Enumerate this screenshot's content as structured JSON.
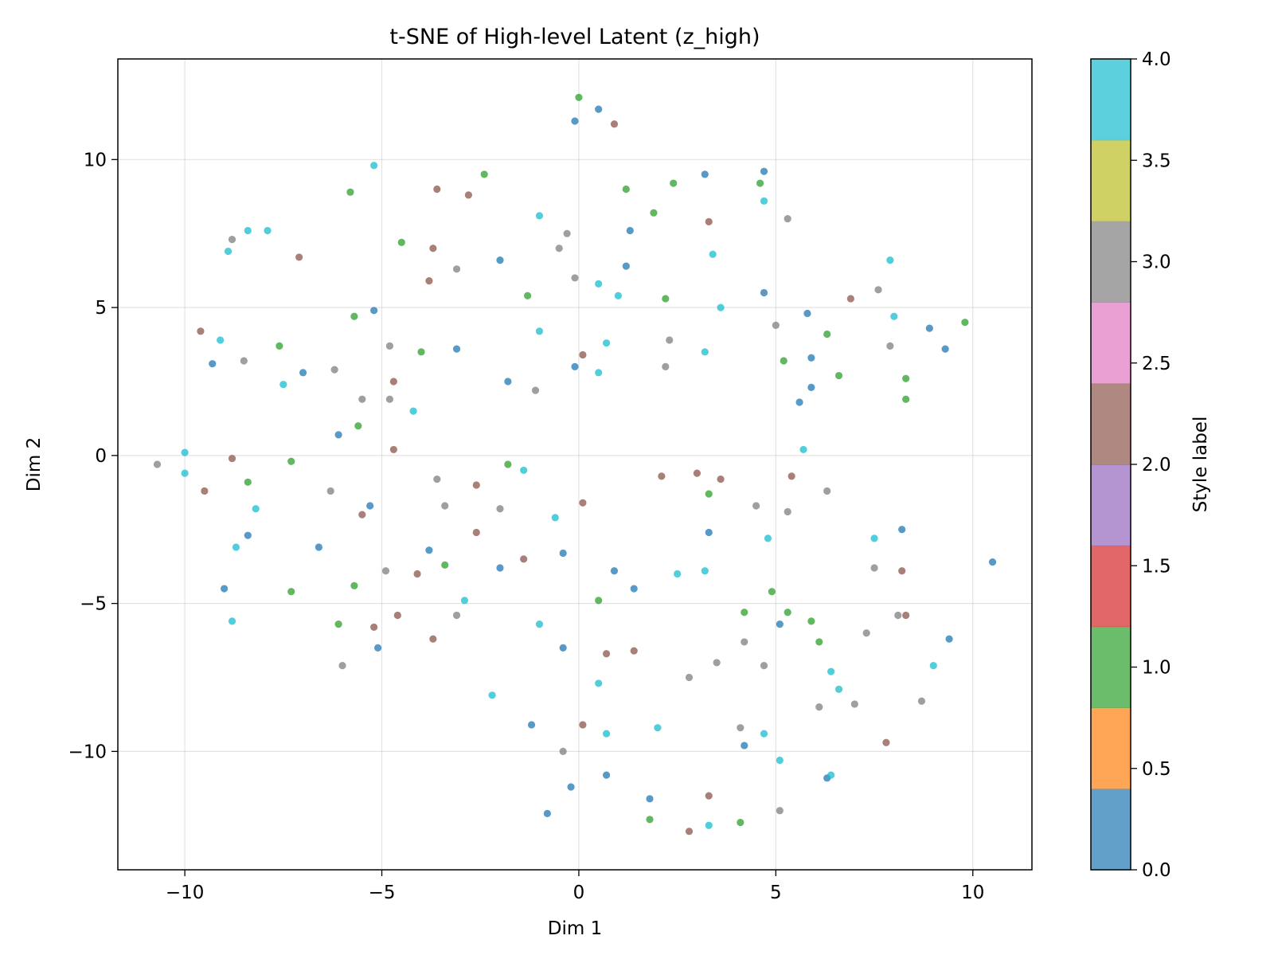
{
  "chart_data": {
    "type": "scatter",
    "title": "t-SNE of High-level Latent (z_high)",
    "xlabel": "Dim 1",
    "ylabel": "Dim 2",
    "xlim": [
      -11.7,
      11.5
    ],
    "ylim": [
      -14.0,
      13.4
    ],
    "xticks": [
      -10,
      -5,
      0,
      5,
      10
    ],
    "yticks": [
      -10,
      -5,
      0,
      5,
      10
    ],
    "xtick_labels": [
      "−10",
      "−5",
      "0",
      "5",
      "10"
    ],
    "ytick_labels": [
      "−10",
      "−5",
      "0",
      "5",
      "10"
    ],
    "grid": true,
    "colormap": "tab10 (5 classes)",
    "class_colors": {
      "0": "#1f77b4",
      "1": "#2ca02c",
      "2": "#8c564b",
      "3": "#7f7f7f",
      "4": "#17becf"
    },
    "colorbar": {
      "label": "Style label",
      "range": [
        0.0,
        4.0
      ],
      "ticks": [
        0.0,
        0.5,
        1.0,
        1.5,
        2.0,
        2.5,
        3.0,
        3.5,
        4.0
      ],
      "tick_labels": [
        "0.0",
        "0.5",
        "1.0",
        "1.5",
        "2.0",
        "2.5",
        "3.0",
        "3.5",
        "4.0"
      ],
      "segments": [
        "#1f77b4",
        "#ff7f0e",
        "#2ca02c",
        "#d62728",
        "#9467bd",
        "#8c564b",
        "#e377c2",
        "#7f7f7f",
        "#bcbd22",
        "#17becf"
      ]
    },
    "points": [
      {
        "x": 0.0,
        "y": 12.1,
        "c": 1
      },
      {
        "x": 0.5,
        "y": 11.7,
        "c": 0
      },
      {
        "x": -0.1,
        "y": 11.3,
        "c": 0
      },
      {
        "x": 0.9,
        "y": 11.2,
        "c": 2
      },
      {
        "x": -5.2,
        "y": 9.8,
        "c": 4
      },
      {
        "x": -2.4,
        "y": 9.5,
        "c": 1
      },
      {
        "x": 3.2,
        "y": 9.5,
        "c": 0
      },
      {
        "x": 4.7,
        "y": 9.6,
        "c": 0
      },
      {
        "x": 4.6,
        "y": 9.2,
        "c": 1
      },
      {
        "x": 2.4,
        "y": 9.2,
        "c": 1
      },
      {
        "x": 1.2,
        "y": 9.0,
        "c": 1
      },
      {
        "x": -3.6,
        "y": 9.0,
        "c": 2
      },
      {
        "x": -2.8,
        "y": 8.8,
        "c": 2
      },
      {
        "x": -5.8,
        "y": 8.9,
        "c": 1
      },
      {
        "x": 4.7,
        "y": 8.6,
        "c": 4
      },
      {
        "x": 1.9,
        "y": 8.2,
        "c": 1
      },
      {
        "x": -1.0,
        "y": 8.1,
        "c": 4
      },
      {
        "x": 5.3,
        "y": 8.0,
        "c": 3
      },
      {
        "x": 3.3,
        "y": 7.9,
        "c": 2
      },
      {
        "x": -8.4,
        "y": 7.6,
        "c": 4
      },
      {
        "x": -7.9,
        "y": 7.6,
        "c": 4
      },
      {
        "x": 1.3,
        "y": 7.6,
        "c": 0
      },
      {
        "x": -0.3,
        "y": 7.5,
        "c": 3
      },
      {
        "x": -8.8,
        "y": 7.3,
        "c": 3
      },
      {
        "x": -4.5,
        "y": 7.2,
        "c": 1
      },
      {
        "x": -0.5,
        "y": 7.0,
        "c": 3
      },
      {
        "x": -3.7,
        "y": 7.0,
        "c": 2
      },
      {
        "x": -8.9,
        "y": 6.9,
        "c": 4
      },
      {
        "x": 3.4,
        "y": 6.8,
        "c": 4
      },
      {
        "x": -7.1,
        "y": 6.7,
        "c": 2
      },
      {
        "x": -2.0,
        "y": 6.6,
        "c": 0
      },
      {
        "x": 7.9,
        "y": 6.6,
        "c": 4
      },
      {
        "x": 1.2,
        "y": 6.4,
        "c": 0
      },
      {
        "x": -3.1,
        "y": 6.3,
        "c": 3
      },
      {
        "x": -0.1,
        "y": 6.0,
        "c": 3
      },
      {
        "x": -3.8,
        "y": 5.9,
        "c": 2
      },
      {
        "x": 0.5,
        "y": 5.8,
        "c": 4
      },
      {
        "x": 7.6,
        "y": 5.6,
        "c": 3
      },
      {
        "x": 4.7,
        "y": 5.5,
        "c": 0
      },
      {
        "x": 1.0,
        "y": 5.4,
        "c": 4
      },
      {
        "x": -1.3,
        "y": 5.4,
        "c": 1
      },
      {
        "x": 2.2,
        "y": 5.3,
        "c": 1
      },
      {
        "x": 6.9,
        "y": 5.3,
        "c": 2
      },
      {
        "x": 3.6,
        "y": 5.0,
        "c": 4
      },
      {
        "x": -5.2,
        "y": 4.9,
        "c": 0
      },
      {
        "x": 5.8,
        "y": 4.8,
        "c": 0
      },
      {
        "x": -5.7,
        "y": 4.7,
        "c": 1
      },
      {
        "x": 8.0,
        "y": 4.7,
        "c": 4
      },
      {
        "x": 9.8,
        "y": 4.5,
        "c": 1
      },
      {
        "x": 5.0,
        "y": 4.4,
        "c": 3
      },
      {
        "x": 8.9,
        "y": 4.3,
        "c": 0
      },
      {
        "x": -1.0,
        "y": 4.2,
        "c": 4
      },
      {
        "x": -9.6,
        "y": 4.2,
        "c": 2
      },
      {
        "x": 6.3,
        "y": 4.1,
        "c": 1
      },
      {
        "x": -9.1,
        "y": 3.9,
        "c": 4
      },
      {
        "x": 2.3,
        "y": 3.9,
        "c": 3
      },
      {
        "x": 0.7,
        "y": 3.8,
        "c": 4
      },
      {
        "x": -4.8,
        "y": 3.7,
        "c": 3
      },
      {
        "x": -7.6,
        "y": 3.7,
        "c": 1
      },
      {
        "x": 7.9,
        "y": 3.7,
        "c": 3
      },
      {
        "x": 9.3,
        "y": 3.6,
        "c": 0
      },
      {
        "x": -3.1,
        "y": 3.6,
        "c": 0
      },
      {
        "x": -4.0,
        "y": 3.5,
        "c": 1
      },
      {
        "x": 3.2,
        "y": 3.5,
        "c": 4
      },
      {
        "x": 0.1,
        "y": 3.4,
        "c": 2
      },
      {
        "x": 5.9,
        "y": 3.3,
        "c": 0
      },
      {
        "x": -8.5,
        "y": 3.2,
        "c": 3
      },
      {
        "x": -9.3,
        "y": 3.1,
        "c": 0
      },
      {
        "x": 5.2,
        "y": 3.2,
        "c": 1
      },
      {
        "x": -0.1,
        "y": 3.0,
        "c": 0
      },
      {
        "x": 2.2,
        "y": 3.0,
        "c": 3
      },
      {
        "x": -6.2,
        "y": 2.9,
        "c": 3
      },
      {
        "x": -7.0,
        "y": 2.8,
        "c": 0
      },
      {
        "x": 0.5,
        "y": 2.8,
        "c": 4
      },
      {
        "x": 6.6,
        "y": 2.7,
        "c": 1
      },
      {
        "x": 8.3,
        "y": 2.6,
        "c": 1
      },
      {
        "x": -1.8,
        "y": 2.5,
        "c": 0
      },
      {
        "x": -4.7,
        "y": 2.5,
        "c": 2
      },
      {
        "x": -7.5,
        "y": 2.4,
        "c": 4
      },
      {
        "x": 5.9,
        "y": 2.3,
        "c": 0
      },
      {
        "x": -1.1,
        "y": 2.2,
        "c": 3
      },
      {
        "x": -5.5,
        "y": 1.9,
        "c": 3
      },
      {
        "x": -4.8,
        "y": 1.9,
        "c": 3
      },
      {
        "x": 8.3,
        "y": 1.9,
        "c": 1
      },
      {
        "x": 5.6,
        "y": 1.8,
        "c": 0
      },
      {
        "x": -4.2,
        "y": 1.5,
        "c": 4
      },
      {
        "x": -5.6,
        "y": 1.0,
        "c": 1
      },
      {
        "x": -6.1,
        "y": 0.7,
        "c": 0
      },
      {
        "x": -4.7,
        "y": 0.2,
        "c": 2
      },
      {
        "x": 5.7,
        "y": 0.2,
        "c": 4
      },
      {
        "x": -10.0,
        "y": 0.1,
        "c": 4
      },
      {
        "x": -8.8,
        "y": -0.1,
        "c": 2
      },
      {
        "x": -7.3,
        "y": -0.2,
        "c": 1
      },
      {
        "x": -10.7,
        "y": -0.3,
        "c": 3
      },
      {
        "x": -1.8,
        "y": -0.3,
        "c": 1
      },
      {
        "x": -1.4,
        "y": -0.5,
        "c": 4
      },
      {
        "x": 3.0,
        "y": -0.6,
        "c": 2
      },
      {
        "x": -10.0,
        "y": -0.6,
        "c": 4
      },
      {
        "x": 2.1,
        "y": -0.7,
        "c": 2
      },
      {
        "x": 5.4,
        "y": -0.7,
        "c": 2
      },
      {
        "x": 3.6,
        "y": -0.8,
        "c": 2
      },
      {
        "x": -3.6,
        "y": -0.8,
        "c": 3
      },
      {
        "x": -8.4,
        "y": -0.9,
        "c": 1
      },
      {
        "x": -2.6,
        "y": -1.0,
        "c": 2
      },
      {
        "x": -9.5,
        "y": -1.2,
        "c": 2
      },
      {
        "x": -6.3,
        "y": -1.2,
        "c": 3
      },
      {
        "x": 6.3,
        "y": -1.2,
        "c": 3
      },
      {
        "x": 3.3,
        "y": -1.3,
        "c": 1
      },
      {
        "x": 0.1,
        "y": -1.6,
        "c": 2
      },
      {
        "x": -5.3,
        "y": -1.7,
        "c": 0
      },
      {
        "x": -3.4,
        "y": -1.7,
        "c": 3
      },
      {
        "x": 4.5,
        "y": -1.7,
        "c": 3
      },
      {
        "x": -8.2,
        "y": -1.8,
        "c": 4
      },
      {
        "x": -2.0,
        "y": -1.8,
        "c": 3
      },
      {
        "x": 5.3,
        "y": -1.9,
        "c": 3
      },
      {
        "x": -5.5,
        "y": -2.0,
        "c": 2
      },
      {
        "x": -0.6,
        "y": -2.1,
        "c": 4
      },
      {
        "x": 8.2,
        "y": -2.5,
        "c": 0
      },
      {
        "x": 3.3,
        "y": -2.6,
        "c": 0
      },
      {
        "x": -2.6,
        "y": -2.6,
        "c": 2
      },
      {
        "x": -8.4,
        "y": -2.7,
        "c": 0
      },
      {
        "x": 4.8,
        "y": -2.8,
        "c": 4
      },
      {
        "x": 7.5,
        "y": -2.8,
        "c": 4
      },
      {
        "x": -8.7,
        "y": -3.1,
        "c": 4
      },
      {
        "x": -6.6,
        "y": -3.1,
        "c": 0
      },
      {
        "x": -3.8,
        "y": -3.2,
        "c": 0
      },
      {
        "x": -0.4,
        "y": -3.3,
        "c": 0
      },
      {
        "x": -1.4,
        "y": -3.5,
        "c": 2
      },
      {
        "x": 10.5,
        "y": -3.6,
        "c": 0
      },
      {
        "x": 7.5,
        "y": -3.8,
        "c": 3
      },
      {
        "x": -2.0,
        "y": -3.8,
        "c": 0
      },
      {
        "x": -4.9,
        "y": -3.9,
        "c": 3
      },
      {
        "x": 3.2,
        "y": -3.9,
        "c": 4
      },
      {
        "x": 0.9,
        "y": -3.9,
        "c": 0
      },
      {
        "x": 8.2,
        "y": -3.9,
        "c": 2
      },
      {
        "x": 2.5,
        "y": -4.0,
        "c": 4
      },
      {
        "x": -4.1,
        "y": -4.0,
        "c": 2
      },
      {
        "x": -3.4,
        "y": -3.7,
        "c": 1
      },
      {
        "x": -5.7,
        "y": -4.4,
        "c": 1
      },
      {
        "x": -9.0,
        "y": -4.5,
        "c": 0
      },
      {
        "x": 1.4,
        "y": -4.5,
        "c": 0
      },
      {
        "x": -7.3,
        "y": -4.6,
        "c": 1
      },
      {
        "x": 4.9,
        "y": -4.6,
        "c": 1
      },
      {
        "x": 0.5,
        "y": -4.9,
        "c": 1
      },
      {
        "x": -2.9,
        "y": -4.9,
        "c": 4
      },
      {
        "x": 4.2,
        "y": -5.3,
        "c": 1
      },
      {
        "x": 5.3,
        "y": -5.3,
        "c": 1
      },
      {
        "x": -3.1,
        "y": -5.4,
        "c": 3
      },
      {
        "x": 8.3,
        "y": -5.4,
        "c": 2
      },
      {
        "x": 8.1,
        "y": -5.4,
        "c": 3
      },
      {
        "x": -4.6,
        "y": -5.4,
        "c": 2
      },
      {
        "x": -8.8,
        "y": -5.6,
        "c": 4
      },
      {
        "x": 5.9,
        "y": -5.6,
        "c": 1
      },
      {
        "x": -6.1,
        "y": -5.7,
        "c": 1
      },
      {
        "x": -1.0,
        "y": -5.7,
        "c": 4
      },
      {
        "x": 5.1,
        "y": -5.7,
        "c": 0
      },
      {
        "x": -5.2,
        "y": -5.8,
        "c": 2
      },
      {
        "x": 7.3,
        "y": -6.0,
        "c": 3
      },
      {
        "x": 9.4,
        "y": -6.2,
        "c": 0
      },
      {
        "x": -3.7,
        "y": -6.2,
        "c": 2
      },
      {
        "x": 4.2,
        "y": -6.3,
        "c": 3
      },
      {
        "x": 6.1,
        "y": -6.3,
        "c": 1
      },
      {
        "x": -5.1,
        "y": -6.5,
        "c": 0
      },
      {
        "x": -0.4,
        "y": -6.5,
        "c": 0
      },
      {
        "x": 1.4,
        "y": -6.6,
        "c": 2
      },
      {
        "x": 0.7,
        "y": -6.7,
        "c": 2
      },
      {
        "x": 3.5,
        "y": -7.0,
        "c": 3
      },
      {
        "x": 9.0,
        "y": -7.1,
        "c": 4
      },
      {
        "x": 4.7,
        "y": -7.1,
        "c": 3
      },
      {
        "x": -6.0,
        "y": -7.1,
        "c": 3
      },
      {
        "x": 6.4,
        "y": -7.3,
        "c": 4
      },
      {
        "x": 2.8,
        "y": -7.5,
        "c": 3
      },
      {
        "x": 0.5,
        "y": -7.7,
        "c": 4
      },
      {
        "x": 6.6,
        "y": -7.9,
        "c": 4
      },
      {
        "x": -2.2,
        "y": -8.1,
        "c": 4
      },
      {
        "x": 8.7,
        "y": -8.3,
        "c": 3
      },
      {
        "x": 7.0,
        "y": -8.4,
        "c": 3
      },
      {
        "x": 6.1,
        "y": -8.5,
        "c": 3
      },
      {
        "x": -1.2,
        "y": -9.1,
        "c": 0
      },
      {
        "x": 0.1,
        "y": -9.1,
        "c": 2
      },
      {
        "x": 2.0,
        "y": -9.2,
        "c": 4
      },
      {
        "x": 4.1,
        "y": -9.2,
        "c": 3
      },
      {
        "x": 0.7,
        "y": -9.4,
        "c": 4
      },
      {
        "x": 4.7,
        "y": -9.4,
        "c": 4
      },
      {
        "x": 7.8,
        "y": -9.7,
        "c": 2
      },
      {
        "x": 4.2,
        "y": -9.8,
        "c": 0
      },
      {
        "x": -0.4,
        "y": -10.0,
        "c": 3
      },
      {
        "x": 5.1,
        "y": -10.3,
        "c": 4
      },
      {
        "x": 0.7,
        "y": -10.8,
        "c": 0
      },
      {
        "x": 6.3,
        "y": -10.9,
        "c": 0
      },
      {
        "x": 6.4,
        "y": -10.8,
        "c": 4
      },
      {
        "x": -0.2,
        "y": -11.2,
        "c": 0
      },
      {
        "x": 3.3,
        "y": -11.5,
        "c": 2
      },
      {
        "x": 1.8,
        "y": -11.6,
        "c": 0
      },
      {
        "x": 5.1,
        "y": -12.0,
        "c": 3
      },
      {
        "x": -0.8,
        "y": -12.1,
        "c": 0
      },
      {
        "x": 1.8,
        "y": -12.3,
        "c": 1
      },
      {
        "x": 4.1,
        "y": -12.4,
        "c": 1
      },
      {
        "x": 3.3,
        "y": -12.5,
        "c": 4
      },
      {
        "x": 2.8,
        "y": -12.7,
        "c": 2
      }
    ]
  }
}
